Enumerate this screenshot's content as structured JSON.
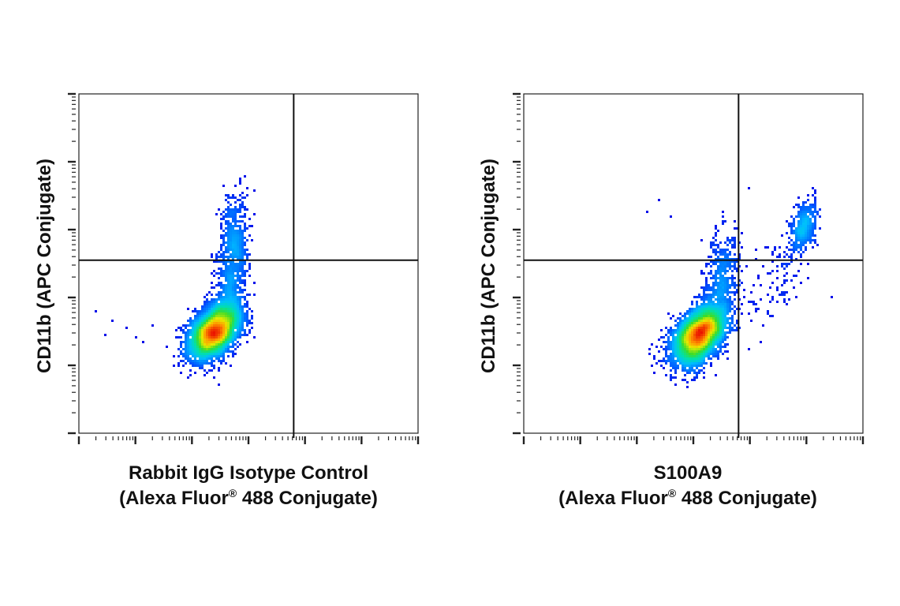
{
  "chart_data": [
    {
      "type": "scatter",
      "title": "",
      "xlabel_line1": "Rabbit IgG Isotype Control",
      "xlabel_line2_pre": "(Alexa Fluor",
      "xlabel_line2_sup": "®",
      "xlabel_line2_post": " 488 Conjugate)",
      "ylabel": "CD11b (APC Conjugate)",
      "x_scale": "log",
      "y_scale": "log",
      "xlim": [
        0,
        6
      ],
      "ylim": [
        0,
        5
      ],
      "x_gate": 3.8,
      "y_gate": 2.55,
      "grid": false,
      "populations": [
        {
          "cx": 2.4,
          "cy": 1.5,
          "sx": 0.23,
          "sy": 0.2,
          "rho": 0.45,
          "n": 4200
        },
        {
          "cx": 2.7,
          "cy": 2.3,
          "sx": 0.14,
          "sy": 0.45,
          "rho": 0.3,
          "n": 700
        },
        {
          "cx": 2.75,
          "cy": 3.0,
          "sx": 0.12,
          "sy": 0.3,
          "rho": 0.0,
          "n": 260
        }
      ],
      "sparse_points": [
        [
          0.3,
          1.8
        ],
        [
          0.45,
          1.45
        ],
        [
          0.6,
          1.65
        ],
        [
          0.85,
          1.55
        ],
        [
          1.0,
          1.4
        ],
        [
          1.15,
          1.35
        ],
        [
          1.3,
          1.6
        ]
      ]
    },
    {
      "type": "scatter",
      "title": "",
      "xlabel_line1": "S100A9",
      "xlabel_line2_pre": "(Alexa Fluor",
      "xlabel_line2_sup": "®",
      "xlabel_line2_post": " 488 Conjugate)",
      "ylabel": "CD11b (APC Conjugate)",
      "x_scale": "log",
      "y_scale": "log",
      "xlim": [
        0,
        6
      ],
      "ylim": [
        0,
        5
      ],
      "x_gate": 3.8,
      "y_gate": 2.55,
      "grid": false,
      "populations": [
        {
          "cx": 3.1,
          "cy": 1.45,
          "sx": 0.23,
          "sy": 0.22,
          "rho": 0.45,
          "n": 4200
        },
        {
          "cx": 3.5,
          "cy": 2.25,
          "sx": 0.15,
          "sy": 0.4,
          "rho": 0.3,
          "n": 550
        },
        {
          "cx": 4.95,
          "cy": 3.05,
          "sx": 0.12,
          "sy": 0.2,
          "rho": 0.4,
          "n": 400
        },
        {
          "cx": 4.5,
          "cy": 2.3,
          "sx": 0.3,
          "sy": 0.35,
          "rho": 0.5,
          "n": 110
        }
      ],
      "sparse_points": [
        [
          2.25,
          1.3
        ],
        [
          2.5,
          1.05
        ],
        [
          2.2,
          3.25
        ],
        [
          2.4,
          3.45
        ],
        [
          2.6,
          3.2
        ],
        [
          5.45,
          2.0
        ],
        [
          4.2,
          1.35
        ],
        [
          4.0,
          1.25
        ]
      ]
    }
  ]
}
